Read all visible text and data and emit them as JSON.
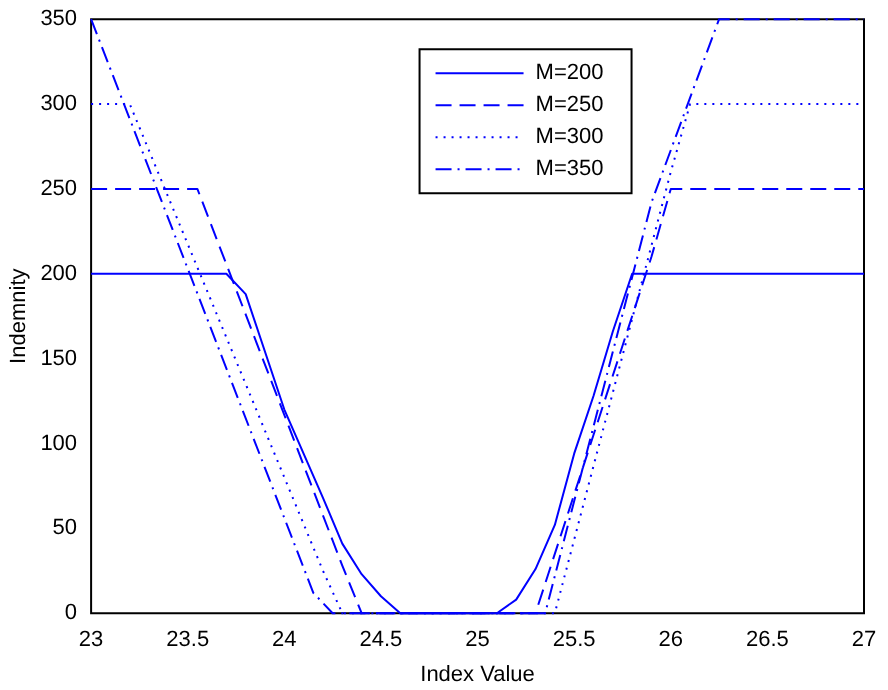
{
  "chart_data": {
    "type": "line",
    "xlabel": "Index Value",
    "ylabel": "Indemnity",
    "xlim": [
      23,
      27
    ],
    "ylim": [
      0,
      350
    ],
    "xticks": [
      23,
      {
        "value": 23.5,
        "label": "23.5"
      },
      24,
      {
        "value": 24.5,
        "label": "24.5"
      },
      25,
      {
        "value": 25.5,
        "label": "25.5"
      },
      26,
      {
        "value": 26.5,
        "label": "26.5"
      },
      27
    ],
    "yticks": [
      0,
      50,
      100,
      150,
      200,
      250,
      300,
      350
    ],
    "grid": false,
    "legend": "top",
    "marker": "none",
    "series": [
      {
        "name": "M=200",
        "color": "#0000ff",
        "line_style": "solid",
        "x": [
          23,
          23.7,
          23.8,
          24,
          24.2,
          24.3,
          24.4,
          24.5,
          24.6,
          25.1,
          25.2,
          25.3,
          25.4,
          25.5,
          25.6,
          25.7,
          25.8,
          27
        ],
        "values": [
          200,
          200,
          188,
          120,
          68,
          41,
          23,
          10,
          0,
          0,
          8,
          26,
          52,
          94,
          128,
          166,
          200,
          200
        ]
      },
      {
        "name": "M=250",
        "color": "#0000ff",
        "line_style": "dashed",
        "x": [
          23,
          23.55,
          24.3,
          24.4,
          25.3,
          25.9,
          26,
          27
        ],
        "values": [
          250,
          250,
          28,
          0,
          0,
          210,
          250,
          250
        ]
      },
      {
        "name": "M=300",
        "color": "#0000ff",
        "line_style": "dotted",
        "x": [
          23,
          23.2,
          24.2,
          24.3,
          25.4,
          26,
          26.1,
          27
        ],
        "values": [
          300,
          300,
          25,
          0,
          0,
          260,
          300,
          300
        ]
      },
      {
        "name": "M=350",
        "color": "#0000ff",
        "line_style": "dashdot",
        "x": [
          23,
          24.15,
          24.25,
          25.35,
          25.9,
          26.25,
          27
        ],
        "values": [
          350,
          12,
          0,
          0,
          242,
          350,
          350
        ]
      }
    ]
  }
}
